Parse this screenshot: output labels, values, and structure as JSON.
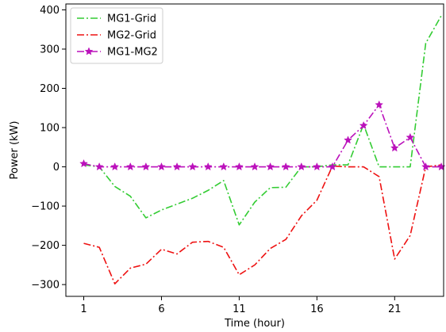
{
  "chart_data": {
    "type": "line",
    "xlabel": "Time (hour)",
    "ylabel": "Power (kW)",
    "xlim": [
      -0.15,
      24.15
    ],
    "ylim": [
      -330,
      415
    ],
    "xticks": [
      1,
      6,
      11,
      16,
      21
    ],
    "yticks": [
      -300,
      -200,
      -100,
      0,
      100,
      200,
      300,
      400
    ],
    "legend_position": "top-left",
    "grid": false,
    "x": [
      1,
      2,
      3,
      4,
      5,
      6,
      7,
      8,
      9,
      10,
      11,
      12,
      13,
      14,
      15,
      16,
      17,
      18,
      19,
      20,
      21,
      22,
      23,
      24
    ],
    "series": [
      {
        "name": "MG1-Grid",
        "color": "#33cc33",
        "linestyle": "dash-dot",
        "marker": "none",
        "values": [
          5,
          0,
          -50,
          -75,
          -130,
          -110,
          -95,
          -80,
          -60,
          -35,
          -148,
          -90,
          -53,
          -52,
          0,
          0,
          5,
          5,
          108,
          0,
          0,
          0,
          315,
          385
        ]
      },
      {
        "name": "MG2-Grid",
        "color": "#ee1111",
        "linestyle": "dash-dot",
        "marker": "none",
        "values": [
          -195,
          -205,
          -298,
          -258,
          -248,
          -210,
          -222,
          -192,
          -190,
          -205,
          -275,
          -250,
          -208,
          -185,
          -125,
          -85,
          2,
          0,
          0,
          -25,
          -235,
          -175,
          0,
          5
        ]
      },
      {
        "name": "MG1-MG2",
        "color": "#bb11bb",
        "linestyle": "dash-dot",
        "marker": "star",
        "values": [
          8,
          0,
          0,
          0,
          0,
          0,
          0,
          0,
          0,
          0,
          0,
          0,
          0,
          0,
          0,
          0,
          0,
          68,
          105,
          158,
          48,
          75,
          0,
          0
        ]
      }
    ]
  }
}
